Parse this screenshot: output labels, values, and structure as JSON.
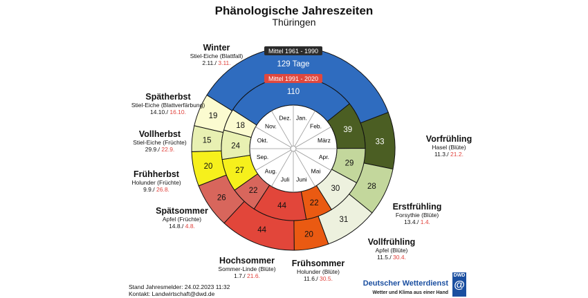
{
  "chart_data": {
    "type": "pie",
    "title": "Phänologische Jahreszeiten",
    "subtitle": "Thüringen",
    "outer_ring_label": "Mittel 1961 - 1990",
    "outer_winter_text": "129 Tage",
    "inner_ring_label": "Mittel 1991 - 2020",
    "outer_start_day_of_year": 70,
    "inner_start_day_of_year": 52,
    "phases": [
      {
        "name": "Vorfrühling",
        "plant": "Hasel (Blüte)",
        "date_1961_1990": "11.3./",
        "date_1991_2020": "21.2.",
        "days_1961_1990": 33,
        "days_1991_2020": 39,
        "color": "#4b5e23"
      },
      {
        "name": "Erstfrühling",
        "plant": "Forsythie (Blüte)",
        "date_1961_1990": "13.4./",
        "date_1991_2020": "1.4.",
        "days_1961_1990": 28,
        "days_1991_2020": 29,
        "color": "#c3d79c"
      },
      {
        "name": "Vollfrühling",
        "plant": "Apfel (Blüte)",
        "date_1961_1990": "11.5./",
        "date_1991_2020": "30.4.",
        "days_1961_1990": 31,
        "days_1991_2020": 30,
        "color": "#edf1de"
      },
      {
        "name": "Frühsommer",
        "plant": "Holunder (Blüte)",
        "date_1961_1990": "11.6./",
        "date_1991_2020": "30.5.",
        "days_1961_1990": 20,
        "days_1991_2020": 22,
        "color": "#ea5a12"
      },
      {
        "name": "Hochsommer",
        "plant": "Sommer-Linde (Blüte)",
        "date_1961_1990": "1.7./",
        "date_1991_2020": "21.6.",
        "days_1961_1990": 44,
        "days_1991_2020": 44,
        "color": "#e2463a"
      },
      {
        "name": "Spätsommer",
        "plant": "Apfel (Früchte)",
        "date_1961_1990": "14.8./",
        "date_1991_2020": "4.8.",
        "days_1961_1990": 26,
        "days_1991_2020": 22,
        "color": "#d8665c"
      },
      {
        "name": "Frühherbst",
        "plant": "Holunder (Früchte)",
        "date_1961_1990": "9.9./",
        "date_1991_2020": "26.8.",
        "days_1961_1990": 20,
        "days_1991_2020": 27,
        "color": "#f6f01c"
      },
      {
        "name": "Vollherbst",
        "plant": "Stiel-Eiche (Früchte)",
        "date_1961_1990": "29.9./",
        "date_1991_2020": "22.9.",
        "days_1961_1990": 15,
        "days_1991_2020": 24,
        "color": "#e8f0b2"
      },
      {
        "name": "Spätherbst",
        "plant": "Stiel-Eiche (Blattverfärbung)",
        "date_1961_1990": "14.10./",
        "date_1991_2020": "16.10.",
        "days_1961_1990": 19,
        "days_1991_2020": 18,
        "color": "#fbfbd0"
      },
      {
        "name": "Winter",
        "plant": "Stiel-Eiche (Blattfall)",
        "date_1961_1990": "2.11./",
        "date_1991_2020": "3.11.",
        "days_1961_1990": 129,
        "days_1991_2020": 110,
        "color": "#2f6cbf"
      }
    ],
    "months": [
      "Jan.",
      "Feb.",
      "März",
      "Apr.",
      "Mai",
      "Juni",
      "Juli",
      "Aug.",
      "Sep.",
      "Okt.",
      "Nov.",
      "Dez."
    ]
  },
  "footer": {
    "line1": "Stand Jahresmelder: 24.02.2023 11:32",
    "line2": "Kontakt: Landwirtschaft@dwd.de"
  },
  "brand": {
    "name": "Deutscher Wetterdienst",
    "slogan": "Wetter und Klima aus einer Hand",
    "logo_text": "DWD"
  }
}
